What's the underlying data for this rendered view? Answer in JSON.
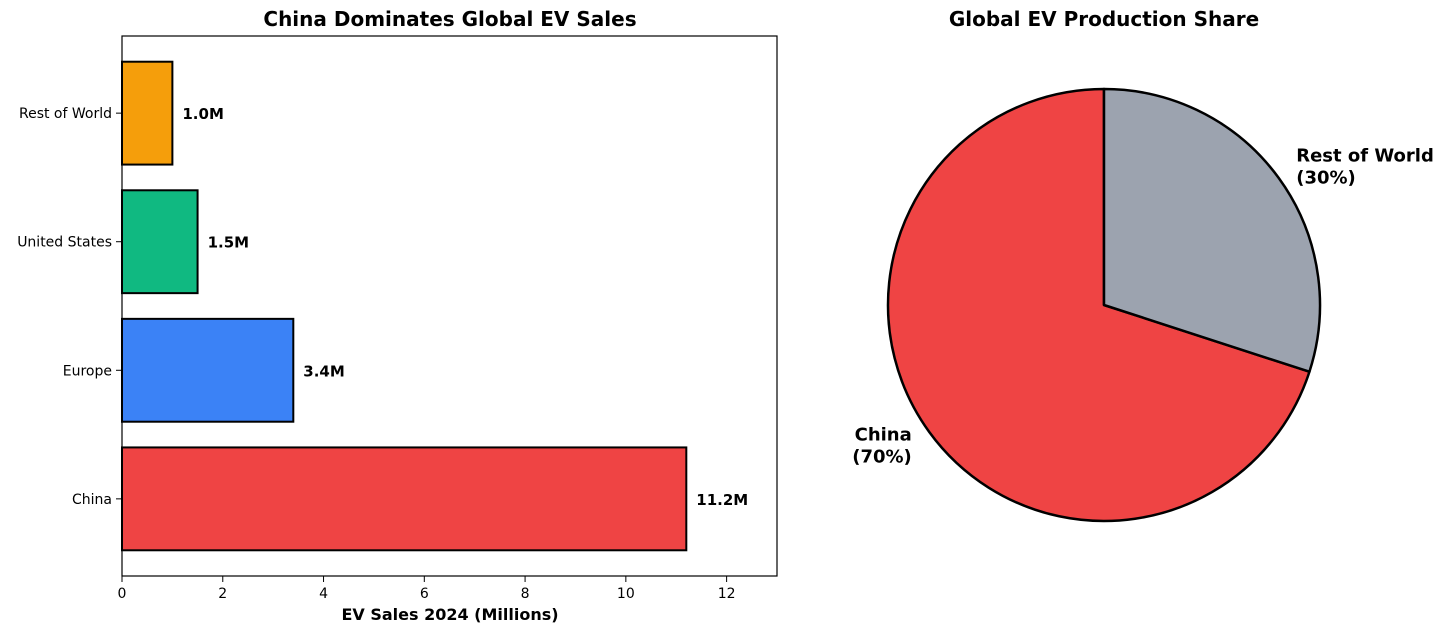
{
  "chart_data": [
    {
      "type": "bar",
      "orientation": "horizontal",
      "title": "China Dominates Global EV Sales",
      "xlabel": "EV Sales 2024 (Millions)",
      "ylabel": "",
      "xlim": [
        0,
        13
      ],
      "xticks": [
        "0",
        "2",
        "4",
        "6",
        "8",
        "10",
        "12"
      ],
      "categories": [
        "China",
        "Europe",
        "United States",
        "Rest of World"
      ],
      "values": [
        11.2,
        3.4,
        1.5,
        1.0
      ],
      "data_labels": [
        "11.2M",
        "3.4M",
        "1.5M",
        "1.0M"
      ],
      "colors": [
        "#ef4444",
        "#3b82f6",
        "#10b981",
        "#f59e0b"
      ],
      "grid": false
    },
    {
      "type": "pie",
      "title": "Global EV Production Share",
      "labels": [
        "China",
        "Rest of World"
      ],
      "percent_labels": [
        "(70%)",
        "(30%)"
      ],
      "values": [
        70,
        30
      ],
      "colors": [
        "#ef4444",
        "#9ca3af"
      ]
    }
  ]
}
